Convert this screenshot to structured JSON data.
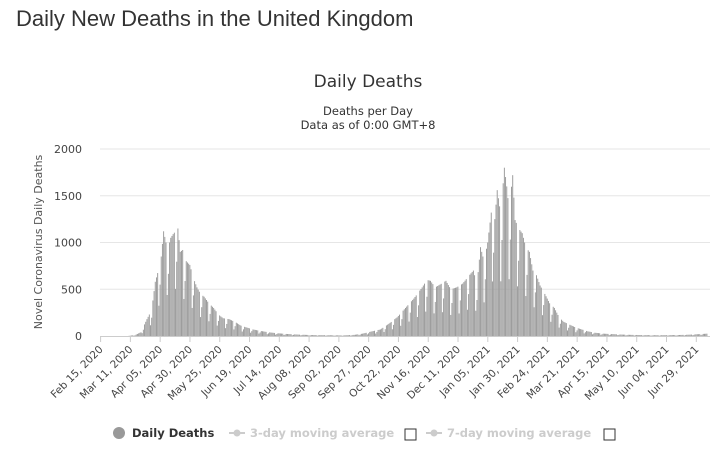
{
  "page": {
    "title": "Daily New Deaths in the United Kingdom"
  },
  "chart_data": {
    "type": "bar",
    "title": "Daily Deaths",
    "subtitle_lines": [
      "Deaths per Day",
      "Data as of 0:00 GMT+8"
    ],
    "ylabel": "Novel Coronavirus Daily Deaths",
    "xlabel": "",
    "ylim": [
      0,
      2000
    ],
    "y_ticks": [
      "0",
      "500",
      "1000",
      "1500",
      "2000"
    ],
    "grid": true,
    "bar_color": "#999999",
    "x_range": [
      "2020-02-15",
      "2021-07-10"
    ],
    "x_tick_labels": [
      "Feb 15, 2020",
      "Mar 11, 2020",
      "Apr 05, 2020",
      "Apr 30, 2020",
      "May 25, 2020",
      "Jun 19, 2020",
      "Jul 14, 2020",
      "Aug 08, 2020",
      "Sep 02, 2020",
      "Sep 27, 2020",
      "Oct 22, 2020",
      "Nov 16, 2020",
      "Dec 11, 2020",
      "Jan 05, 2021",
      "Jan 30, 2021",
      "Feb 24, 2021",
      "Mar 21, 2021",
      "Apr 15, 2021",
      "May 10, 2021",
      "Jun 04, 2021",
      "Jun 29, 2021"
    ],
    "series": [
      {
        "name": "Daily Deaths",
        "points": [
          [
            "2020-03-10",
            2
          ],
          [
            "2020-03-15",
            10
          ],
          [
            "2020-03-20",
            40
          ],
          [
            "2020-03-25",
            180
          ],
          [
            "2020-03-29",
            280
          ],
          [
            "2020-04-01",
            580
          ],
          [
            "2020-04-04",
            720
          ],
          [
            "2020-04-06",
            850
          ],
          [
            "2020-04-08",
            1120
          ],
          [
            "2020-04-10",
            1000
          ],
          [
            "2020-04-12",
            950
          ],
          [
            "2020-04-14",
            1050
          ],
          [
            "2020-04-16",
            1090
          ],
          [
            "2020-04-18",
            1120
          ],
          [
            "2020-04-20",
            1150
          ],
          [
            "2020-04-22",
            900
          ],
          [
            "2020-04-24",
            920
          ],
          [
            "2020-04-27",
            800
          ],
          [
            "2020-04-30",
            760
          ],
          [
            "2020-05-03",
            620
          ],
          [
            "2020-05-06",
            520
          ],
          [
            "2020-05-09",
            450
          ],
          [
            "2020-05-12",
            420
          ],
          [
            "2020-05-16",
            350
          ],
          [
            "2020-05-20",
            300
          ],
          [
            "2020-05-24",
            230
          ],
          [
            "2020-05-28",
            190
          ],
          [
            "2020-06-02",
            180
          ],
          [
            "2020-06-07",
            150
          ],
          [
            "2020-06-12",
            110
          ],
          [
            "2020-06-17",
            90
          ],
          [
            "2020-06-22",
            70
          ],
          [
            "2020-06-28",
            55
          ],
          [
            "2020-07-05",
            40
          ],
          [
            "2020-07-12",
            30
          ],
          [
            "2020-07-20",
            22
          ],
          [
            "2020-07-30",
            15
          ],
          [
            "2020-08-10",
            10
          ],
          [
            "2020-08-25",
            8
          ],
          [
            "2020-09-05",
            6
          ],
          [
            "2020-09-15",
            12
          ],
          [
            "2020-09-22",
            25
          ],
          [
            "2020-09-30",
            50
          ],
          [
            "2020-10-07",
            70
          ],
          [
            "2020-10-14",
            130
          ],
          [
            "2020-10-21",
            200
          ],
          [
            "2020-10-28",
            300
          ],
          [
            "2020-11-04",
            400
          ],
          [
            "2020-11-11",
            520
          ],
          [
            "2020-11-15",
            600
          ],
          [
            "2020-11-18",
            590
          ],
          [
            "2020-11-22",
            520
          ],
          [
            "2020-11-26",
            550
          ],
          [
            "2020-12-01",
            590
          ],
          [
            "2020-12-05",
            500
          ],
          [
            "2020-12-10",
            520
          ],
          [
            "2020-12-15",
            560
          ],
          [
            "2020-12-20",
            640
          ],
          [
            "2020-12-24",
            700
          ],
          [
            "2020-12-27",
            550
          ],
          [
            "2020-12-30",
            950
          ],
          [
            "2021-01-02",
            800
          ],
          [
            "2021-01-05",
            1000
          ],
          [
            "2021-01-08",
            1320
          ],
          [
            "2021-01-11",
            1250
          ],
          [
            "2021-01-13",
            1560
          ],
          [
            "2021-01-16",
            1300
          ],
          [
            "2021-01-19",
            1800
          ],
          [
            "2021-01-21",
            1600
          ],
          [
            "2021-01-23",
            1350
          ],
          [
            "2021-01-26",
            1720
          ],
          [
            "2021-01-28",
            1240
          ],
          [
            "2021-01-31",
            1150
          ],
          [
            "2021-02-03",
            1100
          ],
          [
            "2021-02-06",
            950
          ],
          [
            "2021-02-09",
            900
          ],
          [
            "2021-02-12",
            700
          ],
          [
            "2021-02-15",
            650
          ],
          [
            "2021-02-18",
            540
          ],
          [
            "2021-02-22",
            450
          ],
          [
            "2021-02-26",
            350
          ],
          [
            "2021-03-02",
            300
          ],
          [
            "2021-03-06",
            200
          ],
          [
            "2021-03-10",
            150
          ],
          [
            "2021-03-15",
            120
          ],
          [
            "2021-03-20",
            90
          ],
          [
            "2021-03-25",
            70
          ],
          [
            "2021-03-30",
            50
          ],
          [
            "2021-04-05",
            35
          ],
          [
            "2021-04-12",
            25
          ],
          [
            "2021-04-20",
            20
          ],
          [
            "2021-04-28",
            15
          ],
          [
            "2021-05-06",
            12
          ],
          [
            "2021-05-14",
            10
          ],
          [
            "2021-05-24",
            8
          ],
          [
            "2021-06-03",
            9
          ],
          [
            "2021-06-13",
            10
          ],
          [
            "2021-06-23",
            14
          ],
          [
            "2021-07-02",
            20
          ],
          [
            "2021-07-08",
            25
          ]
        ]
      }
    ],
    "legend": {
      "position": "bottom",
      "items": [
        {
          "label": "Daily Deaths",
          "active": true,
          "color": "#999999"
        },
        {
          "label": "3-day moving average",
          "active": false,
          "color": "#cccccc"
        },
        {
          "label": "7-day moving average",
          "active": false,
          "color": "#cccccc"
        }
      ]
    }
  }
}
